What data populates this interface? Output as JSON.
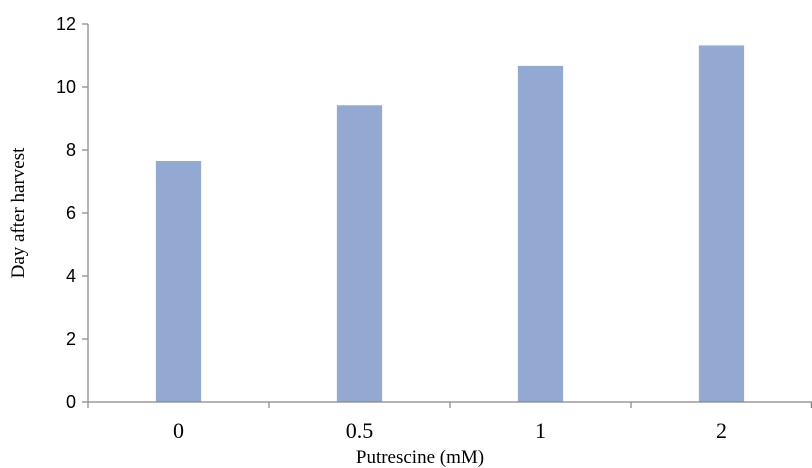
{
  "chart_data": {
    "type": "bar",
    "title": "",
    "xlabel": "Putrescine (mM)",
    "ylabel": "Day after harvest",
    "categories": [
      "0",
      "0.5",
      "1",
      "2"
    ],
    "values": [
      7.65,
      9.42,
      10.67,
      11.32
    ],
    "ylim": [
      0,
      12
    ],
    "yticks": [
      0,
      2,
      4,
      6,
      8,
      10,
      12
    ],
    "grid": false,
    "legend": "none",
    "bar_color": "#94a9d2"
  }
}
